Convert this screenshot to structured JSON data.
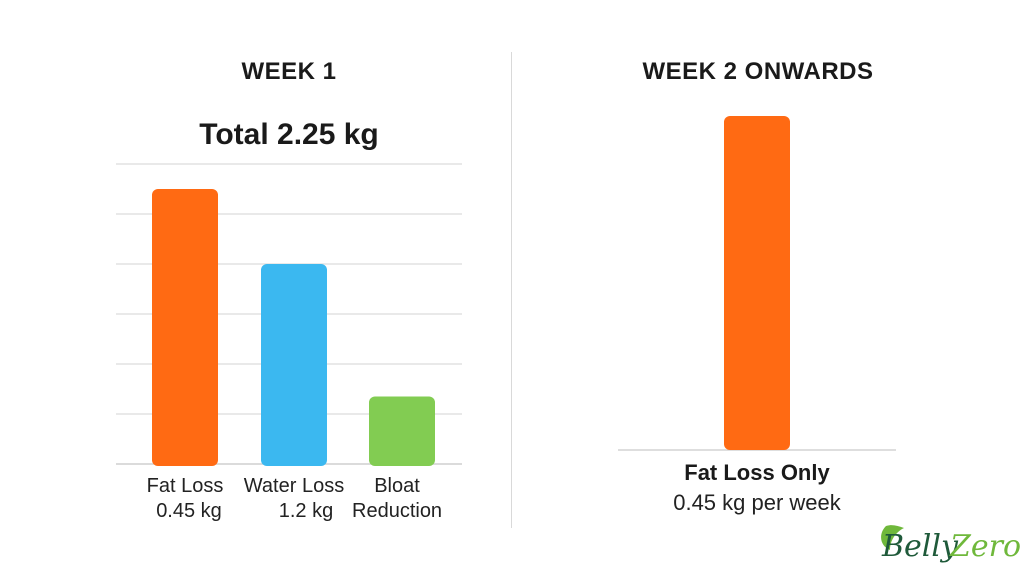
{
  "chart_data": [
    {
      "type": "bar",
      "panel_title": "WEEK 1",
      "title": "Total 2.25 kg",
      "categories": [
        {
          "name": "Fat Loss",
          "value_label": "0.45 kg"
        },
        {
          "name": "Water Loss",
          "value_label": "1.2 kg"
        },
        {
          "name": "Bloat Reduction",
          "value_label": ""
        }
      ],
      "values": [
        0.55,
        0.4,
        0.135
      ],
      "ylim": [
        0,
        0.6
      ],
      "grid": true,
      "colors": [
        "#ff6a13",
        "#3bb8f0",
        "#82cc52"
      ]
    },
    {
      "type": "bar",
      "panel_title": "WEEK 2 ONWARDS",
      "categories": [
        {
          "name": "Fat Loss Only",
          "value_label": "0.45 kg per week"
        }
      ],
      "values": [
        1.0
      ],
      "ylim": [
        0,
        1.0
      ],
      "grid": false,
      "colors": [
        "#ff6a13"
      ]
    }
  ],
  "logo": {
    "text_a": "Belly",
    "text_b": "Zero",
    "color_a": "#1f5a3a",
    "color_b": "#6fb83b"
  }
}
